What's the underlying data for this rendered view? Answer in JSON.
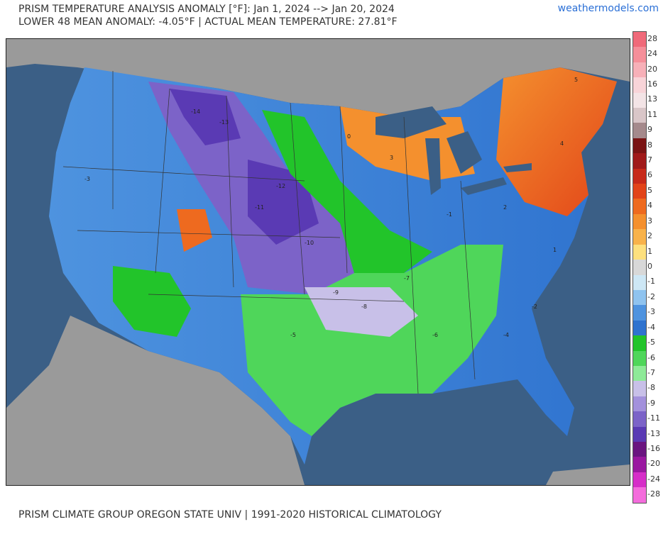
{
  "header": {
    "title_line1": "PRISM TEMPERATURE ANALYSIS ANOMALY [°F]: Jan 1, 2024 --> Jan 20, 2024",
    "title_line2": "LOWER 48 MEAN ANOMALY: -4.05°F | ACTUAL MEAN TEMPERATURE: 27.81°F",
    "site": "weathermodels.com"
  },
  "footer": {
    "text": "PRISM CLIMATE GROUP OREGON STATE UNIV | 1991-2020 HISTORICAL CLIMATOLOGY"
  },
  "colors": {
    "ocean": "#3b5f86",
    "land_outside": "#9a9a9a",
    "lakes": "#3b5f86"
  },
  "colorbar": {
    "labels": [
      "28",
      "24",
      "20",
      "16",
      "13",
      "11",
      "9",
      "8",
      "7",
      "6",
      "5",
      "4",
      "3",
      "2",
      "1",
      "0",
      "-1",
      "-2",
      "-3",
      "-4",
      "-5",
      "-6",
      "-7",
      "-8",
      "-9",
      "-11",
      "-13",
      "-16",
      "-20",
      "-24",
      "-28"
    ],
    "colors": [
      "#f06a7a",
      "#f58f9a",
      "#f7b0b8",
      "#f8d4d8",
      "#f3e4e6",
      "#d9c6c8",
      "#a58a8c",
      "#7a1414",
      "#a01a1a",
      "#c72a1a",
      "#e24419",
      "#ee6a1f",
      "#f4902e",
      "#f8b24a",
      "#fde07e",
      "#d8d8d8",
      "#cde7f5",
      "#8fc3ef",
      "#4e93df",
      "#2f73cf",
      "#22c42a",
      "#4fd65a",
      "#8eea98",
      "#c8c0e8",
      "#a391dc",
      "#7c63c8",
      "#5a3ab4",
      "#6a1580",
      "#9a18a0",
      "#d62ec8",
      "#f46cdc"
    ]
  },
  "map": {
    "anomaly_labels": [
      "-14",
      "-13",
      "-12",
      "-11",
      "-10",
      "-9",
      "-8",
      "-7",
      "-6",
      "-5",
      "-4",
      "-3",
      "-2",
      "-1",
      "0",
      "1",
      "2",
      "3",
      "4",
      "5"
    ]
  }
}
